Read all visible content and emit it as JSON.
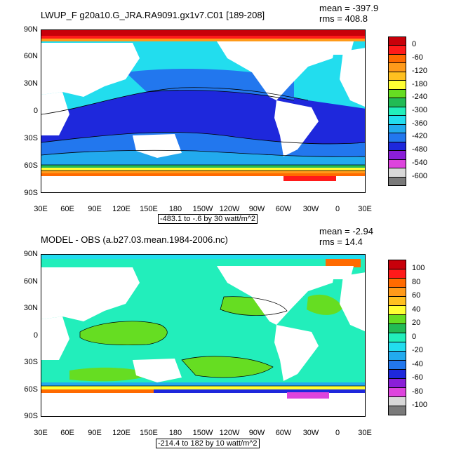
{
  "top": {
    "title": "LWUP_F g20a10.G_JRA.RA9091.gx1v7.C01 [189-208]",
    "mean": "mean = -397.9",
    "rms": "rms = 408.8",
    "range": "-483.1 to -.6 by 30 watt/m^2",
    "lat_labels": [
      "90N",
      "60N",
      "30N",
      "0",
      "30S",
      "60S",
      "90S"
    ],
    "lon_labels": [
      "30E",
      "60E",
      "90E",
      "120E",
      "150E",
      "180",
      "150W",
      "120W",
      "90W",
      "60W",
      "30W",
      "0",
      "30E"
    ],
    "colorbar": {
      "colors": [
        "#c8000a",
        "#ff1a1a",
        "#ff6a00",
        "#ff9a1a",
        "#ffc020",
        "#ffff33",
        "#66dd22",
        "#22bb55",
        "#22eebb",
        "#22ddee",
        "#22aaee",
        "#2277ee",
        "#1e28dc",
        "#8a1ed8",
        "#dd44dd",
        "#d8d8d8",
        "#7a7a7a"
      ],
      "labels": [
        "0",
        "-60",
        "-120",
        "-180",
        "-240",
        "-300",
        "-360",
        "-420",
        "-480",
        "-540",
        "-600"
      ]
    }
  },
  "bottom": {
    "title": "MODEL - OBS (a.b27.03.mean.1984-2006.nc)",
    "mean": "mean = -2.94",
    "rms": "rms = 14.4",
    "range": "-214.4 to 182 by 10 watt/m^2",
    "lat_labels": [
      "90N",
      "60N",
      "30N",
      "0",
      "30S",
      "60S",
      "90S"
    ],
    "lon_labels": [
      "30E",
      "60E",
      "90E",
      "120E",
      "150E",
      "180",
      "150W",
      "120W",
      "90W",
      "60W",
      "30W",
      "0",
      "30E"
    ],
    "colorbar": {
      "colors": [
        "#c8000a",
        "#ff1a1a",
        "#ff6a00",
        "#ff9a1a",
        "#ffc020",
        "#ffff33",
        "#66dd22",
        "#22bb55",
        "#22eebb",
        "#22ddee",
        "#22aaee",
        "#2277ee",
        "#1e28dc",
        "#8a1ed8",
        "#dd44dd",
        "#d8d8d8",
        "#7a7a7a"
      ],
      "labels": [
        "100",
        "80",
        "60",
        "40",
        "20",
        "0",
        "-20",
        "-40",
        "-60",
        "-80",
        "-100"
      ]
    }
  }
}
